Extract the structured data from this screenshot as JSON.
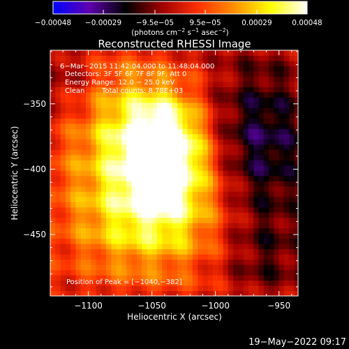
{
  "chart_data": {
    "type": "heatmap",
    "title": "Reconstructed RHESSI Image",
    "xlabel": "Heliocentric X (arcsec)",
    "ylabel": "Heliocentric Y (arcsec)",
    "xlim": [
      -1130,
      -935
    ],
    "ylim": [
      -497,
      -309
    ],
    "x_ticks": [
      {
        "value": -1100,
        "label": "−1100"
      },
      {
        "value": -1050,
        "label": "−1050"
      },
      {
        "value": -1000,
        "label": "−1000"
      },
      {
        "value": -950,
        "label": "−950"
      }
    ],
    "y_ticks": [
      {
        "value": -350,
        "label": "−350"
      },
      {
        "value": -400,
        "label": "−400"
      },
      {
        "value": -450,
        "label": "−450"
      }
    ],
    "colorbar": {
      "range": [
        -0.00048,
        0.00048
      ],
      "ticks": [
        {
          "value": -0.00048,
          "label": "−0.00048"
        },
        {
          "value": -0.00029,
          "label": "−0.00029"
        },
        {
          "value": -9.5e-05,
          "label": "−9.5e−05"
        },
        {
          "value": 9.5e-05,
          "label": "9.5e−05"
        },
        {
          "value": 0.00029,
          "label": "0.00029"
        },
        {
          "value": 0.00048,
          "label": "0.00048"
        }
      ],
      "unit_parts": [
        "(photons cm",
        "−2",
        " s",
        "−1",
        " asec",
        "−2",
        ")"
      ],
      "colors": [
        "#0000ff",
        "#6000b0",
        "#000000",
        "#a00000",
        "#ff3000",
        "#ff9000",
        "#ffff00",
        "#ffffff"
      ]
    },
    "annotations": {
      "time_range": "6−Mar−2015 11:42:04.000 to 11:48:04.000",
      "detectors": "Detectors: 3F 5F 6F 7F 8F 9F, Att 0",
      "energy_range": "Energy Range: 12.0 − 25.0 keV",
      "method": "Clean",
      "total_counts": "Total counts: 8.78E+03",
      "peak": "Position of Peak = [−1040,−382]"
    },
    "peak_position": [
      -1040,
      -382
    ],
    "source_description_values": {
      "peak_flux_max": 0.00048,
      "pixel_size_arcsec": 4
    }
  },
  "footer": {
    "date": "19−May−2022 09:17"
  }
}
